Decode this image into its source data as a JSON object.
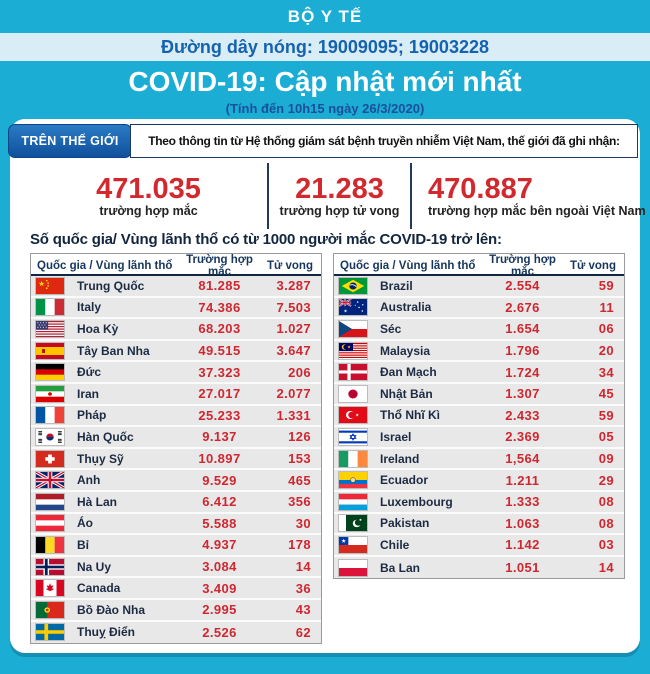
{
  "colors": {
    "background_cyan": "#1badd3",
    "hotline_band": "#d9edf6",
    "hotline_text": "#1563ae",
    "badge_blue": "#1666b4",
    "navy_text": "#16365c",
    "stat_red": "#d2292e",
    "row_gray": "#e8e8e9"
  },
  "header": {
    "ministry": "BỘ Y TẾ",
    "hotline": "Đường dây nóng: 19009095; 19003228",
    "title": "COVID-19: Cập nhật mới nhất",
    "subtitle": "(Tính đến 10h15  ngày 26/3/2020)"
  },
  "world": {
    "badge": "TRÊN THẾ GIỚI",
    "intro": "Theo thông tin từ Hệ thống giám sát bệnh truyền nhiễm Việt Nam, thế giới đã ghi nhận:",
    "stats": [
      {
        "value": "471.035",
        "label": "trường hợp mắc"
      },
      {
        "value": "21.283",
        "label": "trường hợp tử vong"
      },
      {
        "value": "470.887",
        "label": "trường hợp  mắc bên ngoài Việt Nam"
      }
    ]
  },
  "section_title": "Số quốc gia/ Vùng lãnh thổ có từ 1000 người  mắc COVID-19 trở lên:",
  "table_headers": {
    "country": "Quốc gia / Vùng lãnh thổ",
    "cases": "Trường hợp mắc",
    "deaths": "Tử vong"
  },
  "tables": {
    "left": [
      {
        "flag": "china",
        "country": "Trung Quốc",
        "cases": "81.285",
        "deaths": "3.287"
      },
      {
        "flag": "italy",
        "country": "Italy",
        "cases": "74.386",
        "deaths": "7.503"
      },
      {
        "flag": "usa",
        "country": "Hoa Kỳ",
        "cases": "68.203",
        "deaths": "1.027"
      },
      {
        "flag": "spain",
        "country": "Tây Ban Nha",
        "cases": "49.515",
        "deaths": "3.647"
      },
      {
        "flag": "germany",
        "country": "Đức",
        "cases": "37.323",
        "deaths": "206"
      },
      {
        "flag": "iran",
        "country": "Iran",
        "cases": "27.017",
        "deaths": "2.077"
      },
      {
        "flag": "france",
        "country": "Pháp",
        "cases": "25.233",
        "deaths": "1.331"
      },
      {
        "flag": "south-korea",
        "country": "Hàn Quốc",
        "cases": "9.137",
        "deaths": "126"
      },
      {
        "flag": "switzerland",
        "country": "Thụy Sỹ",
        "cases": "10.897",
        "deaths": "153"
      },
      {
        "flag": "uk",
        "country": "Anh",
        "cases": "9.529",
        "deaths": "465"
      },
      {
        "flag": "netherlands",
        "country": "Hà Lan",
        "cases": "6.412",
        "deaths": "356"
      },
      {
        "flag": "austria",
        "country": "Áo",
        "cases": "5.588",
        "deaths": "30"
      },
      {
        "flag": "belgium",
        "country": "Bỉ",
        "cases": "4.937",
        "deaths": "178"
      },
      {
        "flag": "norway",
        "country": "Na Uy",
        "cases": "3.084",
        "deaths": "14"
      },
      {
        "flag": "canada",
        "country": "Canada",
        "cases": "3.409",
        "deaths": "36"
      },
      {
        "flag": "portugal",
        "country": "Bồ Đào Nha",
        "cases": "2.995",
        "deaths": "43"
      },
      {
        "flag": "sweden",
        "country": "Thuỵ Điển",
        "cases": "2.526",
        "deaths": "62"
      }
    ],
    "right": [
      {
        "flag": "brazil",
        "country": "Brazil",
        "cases": "2.554",
        "deaths": "59"
      },
      {
        "flag": "australia",
        "country": "Australia",
        "cases": "2.676",
        "deaths": "11"
      },
      {
        "flag": "czech",
        "country": "Séc",
        "cases": "1.654",
        "deaths": "06"
      },
      {
        "flag": "malaysia",
        "country": "Malaysia",
        "cases": "1.796",
        "deaths": "20"
      },
      {
        "flag": "denmark",
        "country": "Đan Mạch",
        "cases": "1.724",
        "deaths": "34"
      },
      {
        "flag": "japan",
        "country": "Nhật Bản",
        "cases": "1.307",
        "deaths": "45"
      },
      {
        "flag": "turkey",
        "country": "Thổ Nhĩ Kì",
        "cases": "2.433",
        "deaths": "59"
      },
      {
        "flag": "israel",
        "country": "Israel",
        "cases": "2.369",
        "deaths": "05"
      },
      {
        "flag": "ireland",
        "country": "Ireland",
        "cases": "1,564",
        "deaths": "09"
      },
      {
        "flag": "ecuador",
        "country": "Ecuador",
        "cases": "1.211",
        "deaths": "29"
      },
      {
        "flag": "luxembourg",
        "country": "Luxembourg",
        "cases": "1.333",
        "deaths": "08"
      },
      {
        "flag": "pakistan",
        "country": "Pakistan",
        "cases": "1.063",
        "deaths": "08"
      },
      {
        "flag": "chile",
        "country": "Chile",
        "cases": "1.142",
        "deaths": "03"
      },
      {
        "flag": "poland",
        "country": "Ba Lan",
        "cases": "1.051",
        "deaths": "14"
      }
    ]
  }
}
